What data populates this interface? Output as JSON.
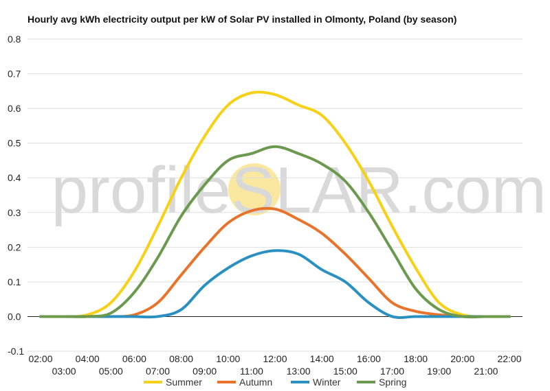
{
  "watermark": {
    "left": "profileS",
    "right": "LAR.com"
  },
  "colors": {
    "Summer": "#f7d117",
    "Autumn": "#e8732a",
    "Winter": "#2a8fc1",
    "Spring": "#6b9a4f",
    "grid": "#dddddd",
    "sun": "#fbe8a0"
  },
  "chart_data": {
    "type": "line",
    "title": "Hourly avg kWh electricity output per kW of Solar PV installed in Olmonty, Poland (by season)",
    "xlabel": "",
    "ylabel": "",
    "ylim": [
      -0.1,
      0.8
    ],
    "yticks": [
      "0.8",
      "0.7",
      "0.6",
      "0.5",
      "0.4",
      "0.3",
      "0.2",
      "0.1",
      "0.0",
      "-0.1"
    ],
    "grid": true,
    "legend": "bottom",
    "categories": [
      "02:00",
      "03:00",
      "04:00",
      "05:00",
      "06:00",
      "07:00",
      "08:00",
      "09:00",
      "10:00",
      "11:00",
      "12:00",
      "13:00",
      "14:00",
      "15:00",
      "16:00",
      "17:00",
      "18:00",
      "19:00",
      "20:00",
      "21:00",
      "22:00"
    ],
    "series": [
      {
        "name": "Summer",
        "values": [
          0,
          0,
          0.005,
          0.04,
          0.13,
          0.26,
          0.4,
          0.52,
          0.61,
          0.645,
          0.64,
          0.61,
          0.58,
          0.5,
          0.39,
          0.26,
          0.14,
          0.04,
          0.005,
          0,
          0
        ]
      },
      {
        "name": "Autumn",
        "values": [
          0,
          0,
          0,
          0,
          0.005,
          0.04,
          0.12,
          0.2,
          0.27,
          0.305,
          0.31,
          0.28,
          0.24,
          0.18,
          0.11,
          0.04,
          0.015,
          0.005,
          0,
          0,
          0
        ]
      },
      {
        "name": "Winter",
        "values": [
          0,
          0,
          0,
          0,
          0,
          0,
          0.02,
          0.09,
          0.14,
          0.175,
          0.19,
          0.18,
          0.135,
          0.1,
          0.04,
          0.0,
          0,
          0,
          0,
          0,
          0
        ]
      },
      {
        "name": "Spring",
        "values": [
          0,
          0,
          0,
          0.01,
          0.07,
          0.17,
          0.29,
          0.38,
          0.45,
          0.47,
          0.49,
          0.47,
          0.44,
          0.39,
          0.3,
          0.19,
          0.08,
          0.02,
          0,
          0,
          0
        ]
      }
    ]
  }
}
